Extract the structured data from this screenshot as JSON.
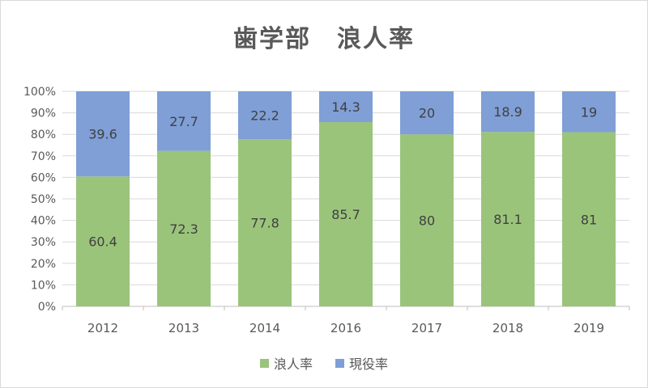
{
  "chart_data": {
    "type": "bar",
    "stacked": true,
    "title": "歯学部　浪人率",
    "categories": [
      "2012",
      "2013",
      "2014",
      "2016",
      "2017",
      "2018",
      "2019"
    ],
    "series": [
      {
        "name": "浪人率",
        "color": "#9bc47b",
        "values": [
          60.4,
          72.3,
          77.8,
          85.7,
          80,
          81.1,
          81
        ]
      },
      {
        "name": "現役率",
        "color": "#7f9fd6",
        "values": [
          39.6,
          27.7,
          22.2,
          14.3,
          20,
          18.9,
          19
        ]
      }
    ],
    "yticks": [
      "0%",
      "10%",
      "20%",
      "30%",
      "40%",
      "50%",
      "60%",
      "70%",
      "80%",
      "90%",
      "100%"
    ],
    "ylim": [
      0,
      100
    ],
    "grid": true,
    "legend": "bottom"
  }
}
